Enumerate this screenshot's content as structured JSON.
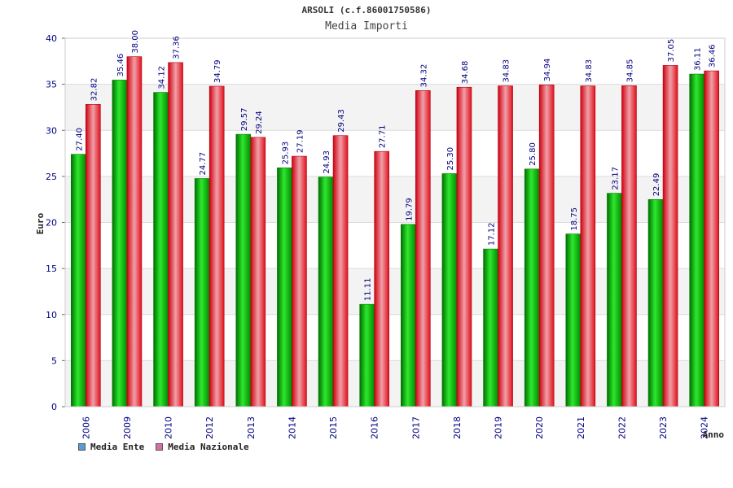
{
  "page": {
    "title": "ARSOLI (c.f.86001750586)",
    "subtitle": "Media Importi"
  },
  "legend": {
    "items": [
      {
        "label": "Media Ente",
        "color": "#5b9bd5"
      },
      {
        "label": "Media Nazionale",
        "color": "#d66fa6"
      }
    ]
  },
  "colors": {
    "ente": "#00b400",
    "nazionale": "#e8121e",
    "plot_band": "#f3f3f3",
    "axis_text": "#000080",
    "label_text": "#000080"
  },
  "chart_data": {
    "type": "bar",
    "title": "ARSOLI (c.f.86001750586)",
    "subtitle": "Media Importi",
    "xlabel": "Anno",
    "ylabel": "Euro",
    "ylim": [
      0,
      40
    ],
    "yticks": [
      0,
      5,
      10,
      15,
      20,
      25,
      30,
      35,
      40
    ],
    "categories": [
      "2006",
      "2009",
      "2010",
      "2012",
      "2013",
      "2014",
      "2015",
      "2016",
      "2017",
      "2018",
      "2019",
      "2020",
      "2021",
      "2022",
      "2023",
      "2024"
    ],
    "series": [
      {
        "name": "Media Ente",
        "values": [
          27.4,
          35.46,
          34.12,
          24.77,
          29.57,
          25.93,
          24.93,
          11.11,
          19.79,
          25.3,
          17.12,
          25.8,
          18.75,
          23.17,
          22.49,
          36.11
        ],
        "labels": [
          "27.40",
          "35.46",
          "34.12",
          "24.77",
          "29.57",
          "25.93",
          "24.93",
          "11.11",
          "19.79",
          "25.30",
          "17.12",
          "25.80",
          "18.75",
          "23.17",
          "22.49",
          "36.11"
        ]
      },
      {
        "name": "Media Nazionale",
        "values": [
          32.82,
          38.0,
          37.36,
          34.79,
          29.24,
          27.19,
          29.43,
          27.71,
          34.32,
          34.68,
          34.83,
          34.94,
          34.83,
          34.85,
          37.05,
          36.46
        ],
        "labels": [
          "32.82",
          "38.00",
          "37.36",
          "34.79",
          "29.24",
          "27.19",
          "29.43",
          "27.71",
          "34.32",
          "34.68",
          "34.83",
          "34.94",
          "34.83",
          "34.85",
          "37.05",
          "36.46"
        ]
      }
    ],
    "grid": true,
    "legend_position": "bottom-left"
  }
}
